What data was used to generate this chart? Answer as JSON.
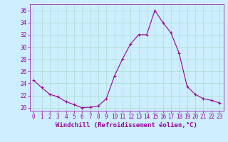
{
  "x": [
    0,
    1,
    2,
    3,
    4,
    5,
    6,
    7,
    8,
    9,
    10,
    11,
    12,
    13,
    14,
    15,
    16,
    17,
    18,
    19,
    20,
    21,
    22,
    23
  ],
  "y": [
    24.5,
    23.3,
    22.2,
    21.8,
    21.0,
    20.5,
    20.0,
    20.1,
    20.3,
    21.5,
    25.2,
    28.0,
    30.5,
    32.0,
    32.0,
    36.0,
    34.0,
    32.3,
    29.0,
    23.5,
    22.2,
    21.5,
    21.2,
    20.8
  ],
  "line_color": "#990099",
  "marker": "+",
  "bg_color": "#cceeff",
  "grid_color": "#aaddcc",
  "xlabel": "Windchill (Refroidissement éolien,°C)",
  "xlabel_color": "#990099",
  "yticks": [
    20,
    22,
    24,
    26,
    28,
    30,
    32,
    34,
    36
  ],
  "xticks": [
    0,
    1,
    2,
    3,
    4,
    5,
    6,
    7,
    8,
    9,
    10,
    11,
    12,
    13,
    14,
    15,
    16,
    17,
    18,
    19,
    20,
    21,
    22,
    23
  ],
  "ylim": [
    19.5,
    37.0
  ],
  "xlim": [
    -0.5,
    23.5
  ],
  "tick_color": "#990099",
  "tick_fontsize": 5.5,
  "xlabel_fontsize": 6.5,
  "linewidth": 0.8,
  "markersize": 3
}
